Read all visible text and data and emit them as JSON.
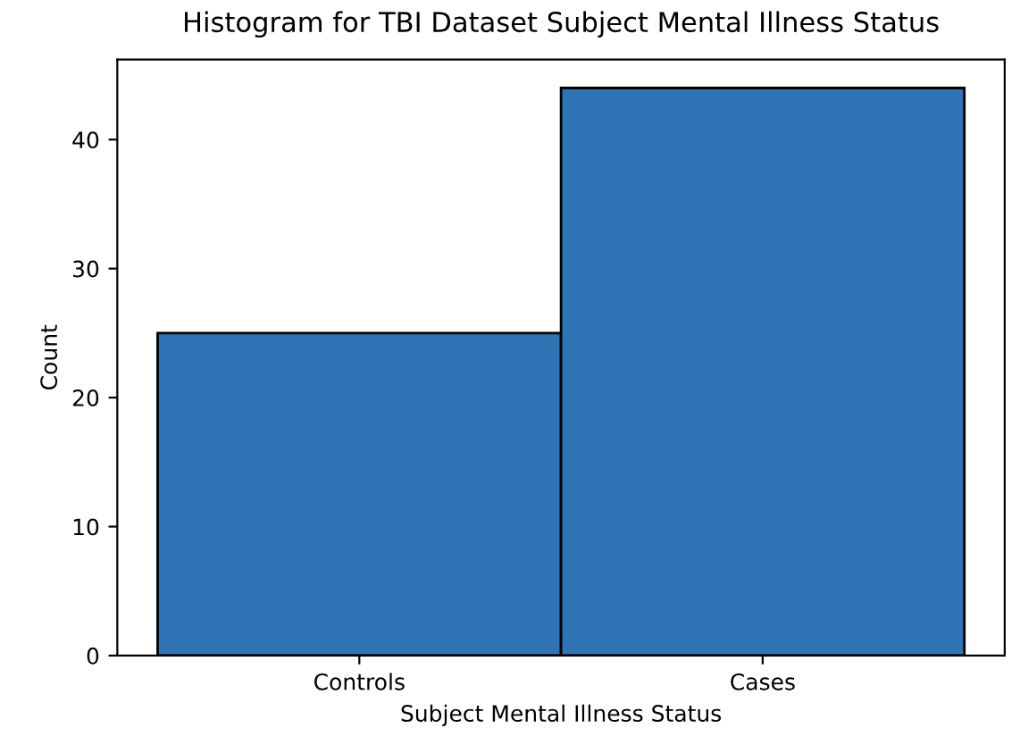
{
  "chart_data": {
    "type": "bar",
    "title": "Histogram for TBI Dataset Subject Mental Illness Status",
    "xlabel": "Subject Mental Illness Status",
    "ylabel": "Count",
    "categories": [
      "Controls",
      "Cases"
    ],
    "values": [
      25,
      44
    ],
    "color": "#2f74b5",
    "ylim": [
      0,
      46.2
    ],
    "yticks": [
      0,
      10,
      20,
      30,
      40
    ]
  }
}
